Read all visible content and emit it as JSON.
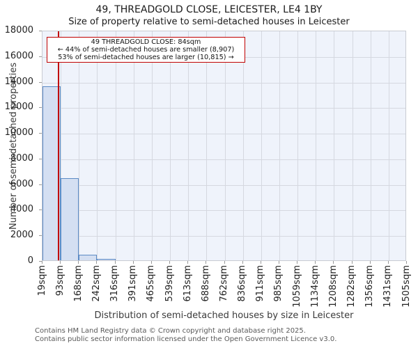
{
  "title": "49, THREADGOLD CLOSE, LEICESTER, LE4 1BY",
  "subtitle": "Size of property relative to semi-detached houses in Leicester",
  "annotation": {
    "line1": "49 THREADGOLD CLOSE: 84sqm",
    "line2": "← 44% of semi-detached houses are smaller (8,907)",
    "line3": "53% of semi-detached houses are larger (10,815) →"
  },
  "chart_data": {
    "type": "bar",
    "title": "49, THREADGOLD CLOSE, LEICESTER, LE4 1BY — Size of property relative to semi-detached houses in Leicester",
    "xlabel": "Distribution of semi-detached houses by size in Leicester",
    "ylabel": "Number of semi-detached properties",
    "x_tick_labels": [
      "19sqm",
      "93sqm",
      "168sqm",
      "242sqm",
      "316sqm",
      "391sqm",
      "465sqm",
      "539sqm",
      "613sqm",
      "688sqm",
      "762sqm",
      "836sqm",
      "911sqm",
      "985sqm",
      "1059sqm",
      "1134sqm",
      "1208sqm",
      "1282sqm",
      "1356sqm",
      "1431sqm",
      "1505sqm"
    ],
    "bin_edges_sqm": [
      19,
      93,
      168,
      242,
      316,
      391,
      465,
      539,
      613,
      688,
      762,
      836,
      911,
      985,
      1059,
      1134,
      1208,
      1282,
      1356,
      1431,
      1505
    ],
    "values": [
      13600,
      6400,
      420,
      130,
      0,
      0,
      0,
      0,
      0,
      0,
      0,
      0,
      0,
      0,
      0,
      0,
      0,
      0,
      0,
      0
    ],
    "y_ticks": [
      0,
      2000,
      4000,
      6000,
      8000,
      10000,
      12000,
      14000,
      16000,
      18000
    ],
    "ylim": [
      0,
      18000
    ],
    "property_line_sqm": 84,
    "grid": true,
    "legend": "none",
    "colors": {
      "bar_fill": "#d4dff2",
      "bar_edge": "#5b8ac5",
      "plot_bg": "#eff3fb",
      "grid": "#d5d8e0",
      "marker_line": "#c00000",
      "annotation_border": "#c00000"
    }
  },
  "footer": {
    "line1": "Contains HM Land Registry data © Crown copyright and database right 2025.",
    "line2": "Contains public sector information licensed under the Open Government Licence v3.0."
  }
}
